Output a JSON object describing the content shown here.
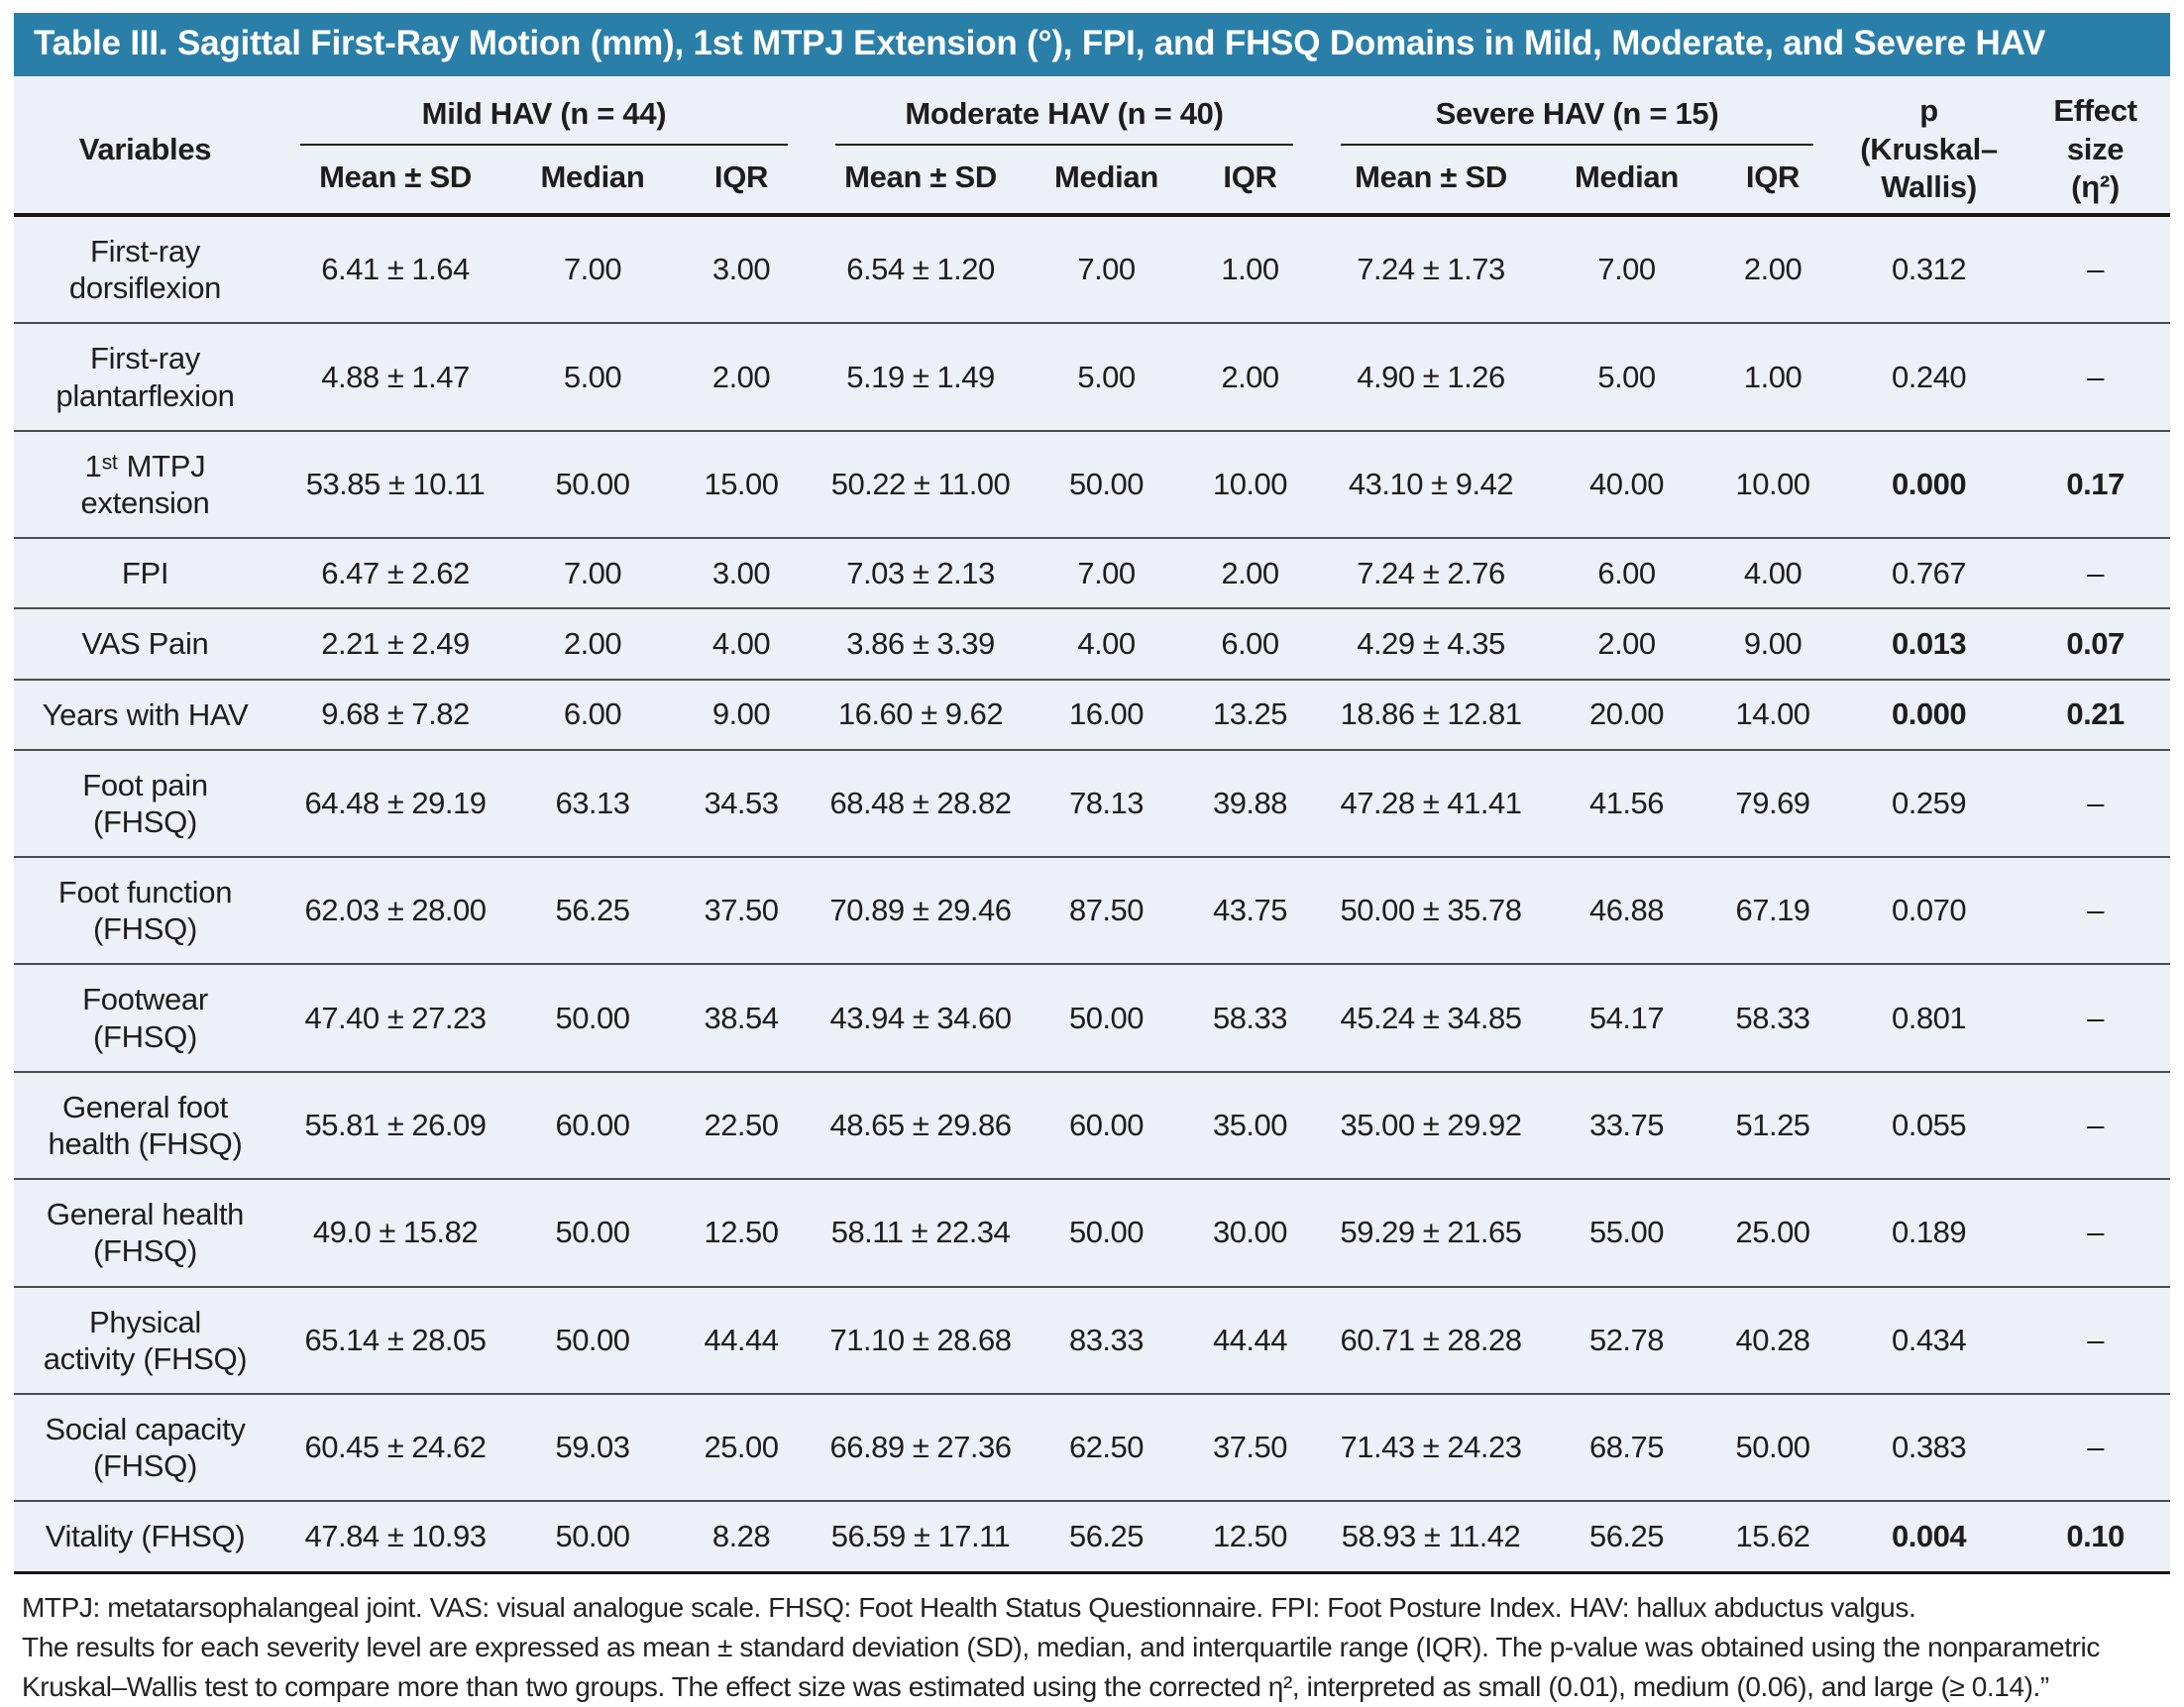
{
  "colors": {
    "title_bar": "#2a7fa8",
    "table_bg": "#edf0f6"
  },
  "title": "Table III. Sagittal First-Ray Motion (mm), 1st MTPJ Extension (°), FPI, and FHSQ Domains in Mild, Moderate, and Severe HAV",
  "header": {
    "variables": "Variables",
    "groups": [
      "Mild HAV (n = 44)",
      "Moderate HAV (n = 40)",
      "Severe HAV (n = 15)"
    ],
    "subcols": [
      "Mean ± SD",
      "Median",
      "IQR"
    ],
    "p": "p\n(Kruskal–\nWallis)",
    "effect": "Effect\nsize\n(η²)"
  },
  "rows": [
    {
      "label": "First-ray\ndorsiflexion",
      "m_mean": "6.41 ± 1.64",
      "m_med": "7.00",
      "m_iqr": "3.00",
      "o_mean": "6.54 ± 1.20",
      "o_med": "7.00",
      "o_iqr": "1.00",
      "s_mean": "7.24 ± 1.73",
      "s_med": "7.00",
      "s_iqr": "2.00",
      "p": "0.312",
      "effect": "–"
    },
    {
      "label": "First-ray\nplantarflexion",
      "m_mean": "4.88 ± 1.47",
      "m_med": "5.00",
      "m_iqr": "2.00",
      "o_mean": "5.19 ± 1.49",
      "o_med": "5.00",
      "o_iqr": "2.00",
      "s_mean": "4.90 ± 1.26",
      "s_med": "5.00",
      "s_iqr": "1.00",
      "p": "0.240",
      "effect": "–"
    },
    {
      "label": "1ˢᵗ MTPJ\nextension",
      "m_mean": "53.85 ± 10.11",
      "m_med": "50.00",
      "m_iqr": "15.00",
      "o_mean": "50.22 ± 11.00",
      "o_med": "50.00",
      "o_iqr": "10.00",
      "s_mean": "43.10 ± 9.42",
      "s_med": "40.00",
      "s_iqr": "10.00",
      "p": "0.000",
      "effect": "0.17"
    },
    {
      "label": "FPI",
      "m_mean": "6.47 ± 2.62",
      "m_med": "7.00",
      "m_iqr": "3.00",
      "o_mean": "7.03 ± 2.13",
      "o_med": "7.00",
      "o_iqr": "2.00",
      "s_mean": "7.24 ± 2.76",
      "s_med": "6.00",
      "s_iqr": "4.00",
      "p": "0.767",
      "effect": "–"
    },
    {
      "label": "VAS Pain",
      "m_mean": "2.21 ± 2.49",
      "m_med": "2.00",
      "m_iqr": "4.00",
      "o_mean": "3.86 ± 3.39",
      "o_med": "4.00",
      "o_iqr": "6.00",
      "s_mean": "4.29 ± 4.35",
      "s_med": "2.00",
      "s_iqr": "9.00",
      "p": "0.013",
      "effect": "0.07"
    },
    {
      "label": "Years with HAV",
      "m_mean": "9.68 ± 7.82",
      "m_med": "6.00",
      "m_iqr": "9.00",
      "o_mean": "16.60 ± 9.62",
      "o_med": "16.00",
      "o_iqr": "13.25",
      "s_mean": "18.86 ± 12.81",
      "s_med": "20.00",
      "s_iqr": "14.00",
      "p": "0.000",
      "effect": "0.21"
    },
    {
      "label": "Foot pain\n(FHSQ)",
      "m_mean": "64.48 ± 29.19",
      "m_med": "63.13",
      "m_iqr": "34.53",
      "o_mean": "68.48 ± 28.82",
      "o_med": "78.13",
      "o_iqr": "39.88",
      "s_mean": "47.28 ± 41.41",
      "s_med": "41.56",
      "s_iqr": "79.69",
      "p": "0.259",
      "effect": "–"
    },
    {
      "label": "Foot function\n(FHSQ)",
      "m_mean": "62.03 ± 28.00",
      "m_med": "56.25",
      "m_iqr": "37.50",
      "o_mean": "70.89 ± 29.46",
      "o_med": "87.50",
      "o_iqr": "43.75",
      "s_mean": "50.00 ± 35.78",
      "s_med": "46.88",
      "s_iqr": "67.19",
      "p": "0.070",
      "effect": "–"
    },
    {
      "label": "Footwear\n(FHSQ)",
      "m_mean": "47.40 ± 27.23",
      "m_med": "50.00",
      "m_iqr": "38.54",
      "o_mean": "43.94 ± 34.60",
      "o_med": "50.00",
      "o_iqr": "58.33",
      "s_mean": "45.24 ± 34.85",
      "s_med": "54.17",
      "s_iqr": "58.33",
      "p": "0.801",
      "effect": "–"
    },
    {
      "label": "General foot\nhealth (FHSQ)",
      "m_mean": "55.81 ± 26.09",
      "m_med": "60.00",
      "m_iqr": "22.50",
      "o_mean": "48.65 ± 29.86",
      "o_med": "60.00",
      "o_iqr": "35.00",
      "s_mean": "35.00 ± 29.92",
      "s_med": "33.75",
      "s_iqr": "51.25",
      "p": "0.055",
      "effect": "–"
    },
    {
      "label": "General health\n(FHSQ)",
      "m_mean": "49.0 ± 15.82",
      "m_med": "50.00",
      "m_iqr": "12.50",
      "o_mean": "58.11 ± 22.34",
      "o_med": "50.00",
      "o_iqr": "30.00",
      "s_mean": "59.29 ± 21.65",
      "s_med": "55.00",
      "s_iqr": "25.00",
      "p": "0.189",
      "effect": "–"
    },
    {
      "label": "Physical\nactivity (FHSQ)",
      "m_mean": "65.14 ± 28.05",
      "m_med": "50.00",
      "m_iqr": "44.44",
      "o_mean": "71.10 ± 28.68",
      "o_med": "83.33",
      "o_iqr": "44.44",
      "s_mean": "60.71 ± 28.28",
      "s_med": "52.78",
      "s_iqr": "40.28",
      "p": "0.434",
      "effect": "–"
    },
    {
      "label": "Social capacity\n(FHSQ)",
      "m_mean": "60.45 ± 24.62",
      "m_med": "59.03",
      "m_iqr": "25.00",
      "o_mean": "66.89 ± 27.36",
      "o_med": "62.50",
      "o_iqr": "37.50",
      "s_mean": "71.43 ± 24.23",
      "s_med": "68.75",
      "s_iqr": "50.00",
      "p": "0.383",
      "effect": "–"
    },
    {
      "label": "Vitality (FHSQ)",
      "m_mean": "47.84 ± 10.93",
      "m_med": "50.00",
      "m_iqr": "8.28",
      "o_mean": "56.59 ± 17.11",
      "o_med": "56.25",
      "o_iqr": "12.50",
      "s_mean": "58.93 ± 11.42",
      "s_med": "56.25",
      "s_iqr": "15.62",
      "p": "0.004",
      "effect": "0.10"
    }
  ],
  "footnotes": {
    "abbrev": "MTPJ: metatarsophalangeal joint. VAS: visual analogue scale. FHSQ: Foot Health Status Questionnaire. FPI: Foot Posture Index. HAV: hallux abductus valgus.",
    "methods": "The results for each severity level are expressed as mean ± standard deviation (SD), median, and interquartile range (IQR). The p-value was obtained using the nonparametric Kruskal–Wallis test to compare more than two groups. The effect size was estimated using the corrected η², interpreted as small (0.01), medium (0.06), and large (≥ 0.14).”"
  }
}
